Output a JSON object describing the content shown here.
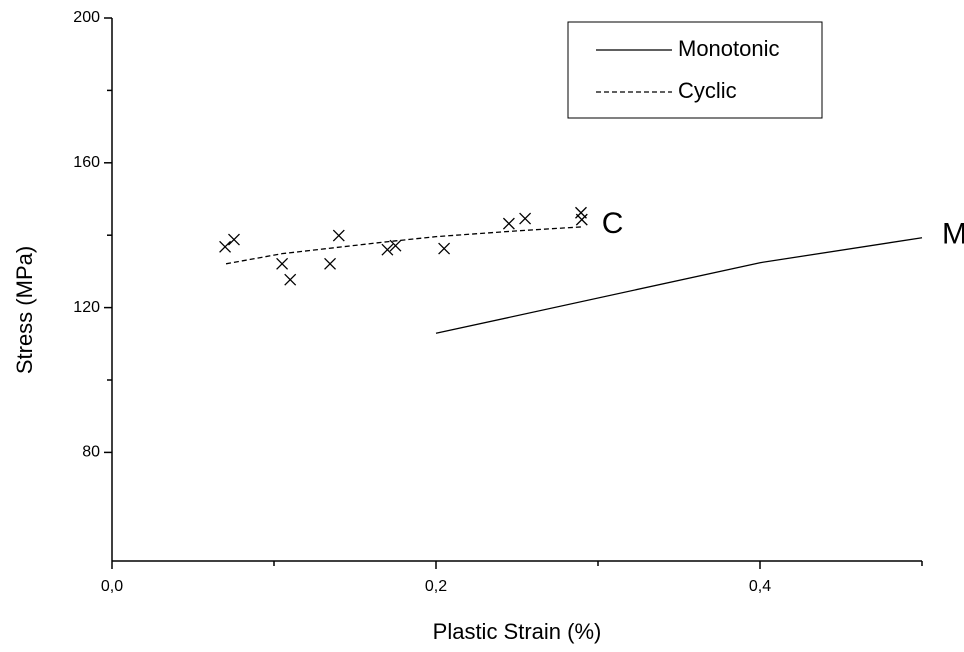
{
  "chart_data": {
    "type": "line",
    "x_label": "Plastic Strain (%)",
    "y_label": "Stress (MPa)",
    "xlim": [
      0,
      0.5
    ],
    "ylim": [
      50,
      200
    ],
    "xticks": [
      {
        "value": 0,
        "label": "0,0"
      },
      {
        "value": 0.2,
        "label": "0,2"
      },
      {
        "value": 0.4,
        "label": "0,4"
      }
    ],
    "yticks": [
      80,
      120,
      160,
      200
    ],
    "xminorticks": [
      0.1,
      0.3,
      0.5
    ],
    "yminorticks": [
      100,
      140,
      180
    ],
    "legend": "top-right",
    "series": [
      {
        "name": "Monotonic",
        "color": "#000000",
        "style": "solid",
        "end_label": "M",
        "x": [
          0.2,
          0.4,
          0.5
        ],
        "values": [
          112.9,
          132.4,
          139.3
        ]
      },
      {
        "name": "Cyclic",
        "color": "#000000",
        "style": "dashed",
        "end_label": "C",
        "x": [
          0.0704,
          0.105,
          0.17,
          0.2,
          0.25,
          0.29
        ],
        "values": [
          132.1,
          134.9,
          138.2,
          139.6,
          141.2,
          142.3
        ]
      }
    ],
    "points": {
      "marker": "x",
      "color": "#000000",
      "x": [
        0.0698,
        0.0753,
        0.105,
        0.11,
        0.1346,
        0.14,
        0.17,
        0.175,
        0.205,
        0.245,
        0.255,
        0.2895,
        0.29
      ],
      "values": [
        136.8,
        138.8,
        132.1,
        127.7,
        132.1,
        139.9,
        136.0,
        137.1,
        136.3,
        143.2,
        144.6,
        146.2,
        144.3
      ]
    }
  }
}
